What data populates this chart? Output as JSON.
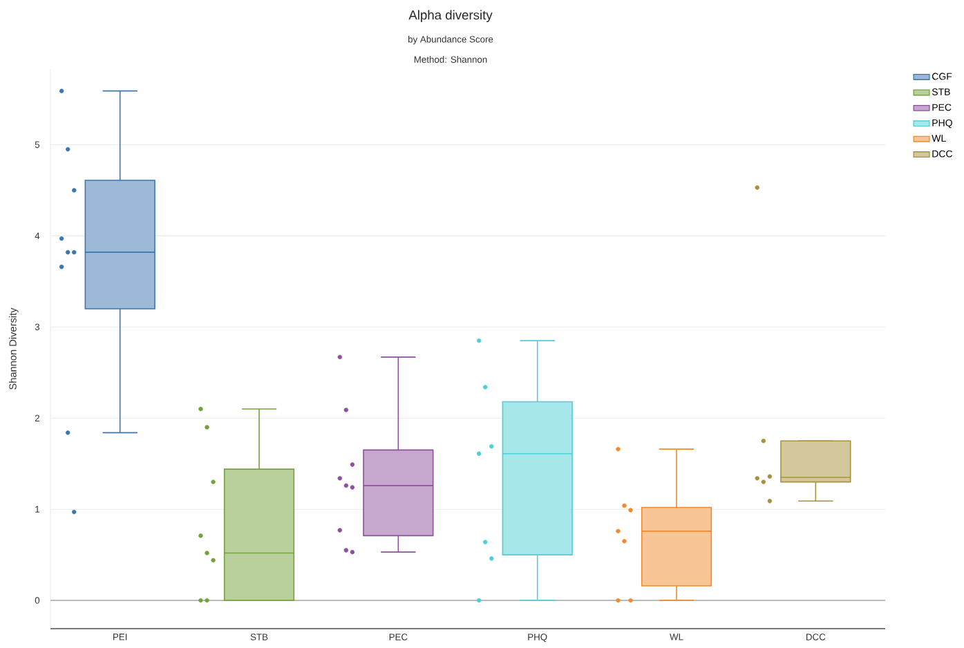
{
  "chart_data": {
    "type": "box",
    "title": "Alpha diversity",
    "subtitle": "by Abundance Score",
    "annotations": [
      "Method: Shannon"
    ],
    "ylabel": "Shannon Diversity",
    "categories": [
      "PEI",
      "STB",
      "PEC",
      "PHQ",
      "WL",
      "DCC"
    ],
    "ylim": [
      -0.31,
      5.83
    ],
    "yticks": [
      0,
      1,
      2,
      3,
      4,
      5
    ],
    "grid": "y",
    "legend": "top right",
    "ref_lines": [
      {
        "axis": "y",
        "value": 0,
        "color": "#999999"
      }
    ],
    "series": [
      {
        "type": "box",
        "name": "CGF",
        "color": "#3a76b0",
        "boxes": [
          {
            "low": 1.84,
            "q1": 3.2,
            "median": 3.82,
            "q3": 4.61,
            "high": 5.59
          },
          null,
          null,
          null,
          null,
          null
        ]
      },
      {
        "type": "box",
        "name": "STB",
        "color": "#74a23a",
        "boxes": [
          null,
          {
            "low": 0,
            "q1": 0,
            "median": 0.52,
            "q3": 1.44,
            "high": 2.1
          },
          null,
          null,
          null,
          null
        ]
      },
      {
        "type": "box",
        "name": "PEC",
        "color": "#8e4f9e",
        "boxes": [
          null,
          null,
          {
            "low": 0.53,
            "q1": 0.71,
            "median": 1.26,
            "q3": 1.65,
            "high": 2.67
          },
          null,
          null,
          null
        ]
      },
      {
        "type": "box",
        "name": "PHQ",
        "color": "#4ecfd6",
        "boxes": [
          null,
          null,
          null,
          {
            "low": 0,
            "q1": 0.5,
            "median": 1.61,
            "q3": 2.18,
            "high": 2.85
          },
          null,
          null
        ]
      },
      {
        "type": "box",
        "name": "WL",
        "color": "#f08a2e",
        "boxes": [
          null,
          null,
          null,
          null,
          {
            "low": 0,
            "q1": 0.16,
            "median": 0.76,
            "q3": 1.02,
            "high": 1.66
          },
          null
        ]
      },
      {
        "type": "box",
        "name": "DCC",
        "color": "#a8913a",
        "boxes": [
          null,
          null,
          null,
          null,
          null,
          {
            "low": 1.09,
            "q1": 1.3,
            "median": 1.35,
            "q3": 1.75,
            "high": 1.75
          }
        ]
      },
      {
        "type": "scatter",
        "color": "#3a76b0",
        "x": [
          "PEI",
          "PEI",
          "PEI",
          "PEI",
          "PEI",
          "PEI",
          "PEI",
          "PEI",
          "PEI"
        ],
        "values": [
          5.59,
          4.95,
          4.5,
          3.97,
          3.82,
          3.82,
          3.66,
          1.84,
          0.97
        ]
      },
      {
        "type": "scatter",
        "color": "#74a23a",
        "x": [
          "STB",
          "STB",
          "STB",
          "STB",
          "STB",
          "STB",
          "STB",
          "STB"
        ],
        "values": [
          2.1,
          1.9,
          1.3,
          0.71,
          0.52,
          0.44,
          0,
          0
        ]
      },
      {
        "type": "scatter",
        "color": "#8e4f9e",
        "x": [
          "PEC",
          "PEC",
          "PEC",
          "PEC",
          "PEC",
          "PEC",
          "PEC",
          "PEC",
          "PEC"
        ],
        "values": [
          2.67,
          2.09,
          1.49,
          1.34,
          1.26,
          1.24,
          0.77,
          0.55,
          0.53
        ]
      },
      {
        "type": "scatter",
        "color": "#4ecfd6",
        "x": [
          "PHQ",
          "PHQ",
          "PHQ",
          "PHQ",
          "PHQ",
          "PHQ",
          "PHQ"
        ],
        "values": [
          2.85,
          2.34,
          1.69,
          1.61,
          0.64,
          0.46,
          0
        ]
      },
      {
        "type": "scatter",
        "color": "#f08a2e",
        "x": [
          "WL",
          "WL",
          "WL",
          "WL",
          "WL",
          "WL",
          "WL"
        ],
        "values": [
          1.66,
          1.04,
          0.99,
          0.76,
          0.65,
          0,
          0
        ]
      },
      {
        "type": "scatter",
        "color": "#a8913a",
        "x": [
          "DCC",
          "DCC",
          "DCC",
          "DCC",
          "DCC",
          "DCC"
        ],
        "values": [
          4.53,
          1.75,
          1.36,
          1.34,
          1.3,
          1.09
        ]
      }
    ]
  }
}
